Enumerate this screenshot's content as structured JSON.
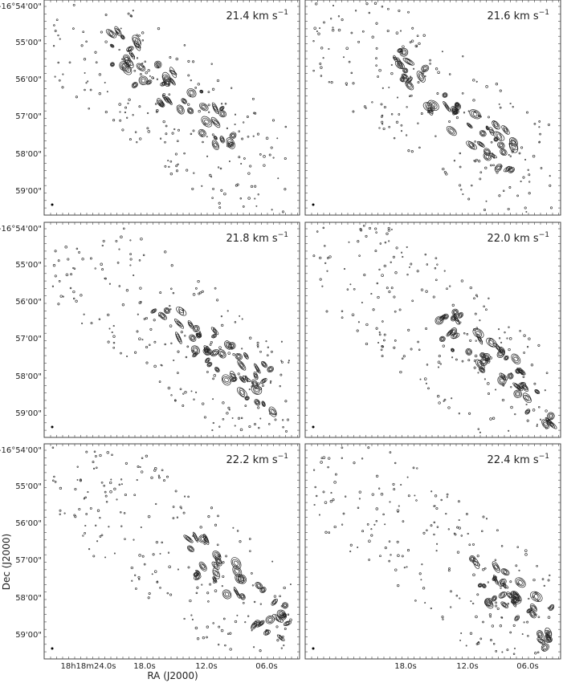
{
  "panels": [
    {
      "label": "21.4 km s",
      "label_sup": "−1"
    },
    {
      "label": "21.6 km s",
      "label_sup": "−1"
    },
    {
      "label": "21.8 km s",
      "label_sup": "−1"
    },
    {
      "label": "22.0 km s",
      "label_sup": "−1"
    },
    {
      "label": "22.2 km s",
      "label_sup": "−1"
    },
    {
      "label": "22.4 km s",
      "label_sup": "−1"
    }
  ],
  "y_ticks": [
    "-16°54'00\"",
    "55'00\"",
    "56'00\"",
    "57'00\"",
    "58'00\"",
    "59'00\""
  ],
  "x_ticks": [
    "18h18m24.0s",
    "18.0s",
    "12.0s",
    "06.0s"
  ],
  "y_axis_title": "Dec (J2000)",
  "x_axis_title": "RA (J2000)"
}
